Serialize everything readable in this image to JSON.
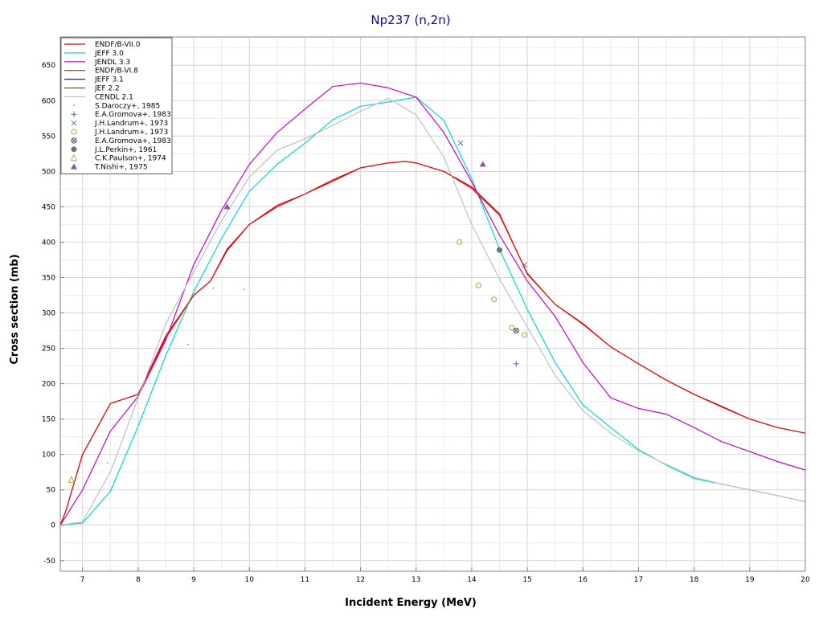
{
  "chart_data": {
    "type": "line",
    "title": "Np237 (n,2n)",
    "xlabel": "Incident Energy (MeV)",
    "ylabel": "Cross section (mb)",
    "xlim": [
      6.6,
      20
    ],
    "ylim": [
      -65,
      690
    ],
    "x_ticks": [
      7,
      8,
      9,
      10,
      11,
      12,
      13,
      14,
      15,
      16,
      17,
      18,
      19,
      20
    ],
    "y_ticks": [
      -50,
      0,
      50,
      100,
      150,
      200,
      250,
      300,
      350,
      400,
      450,
      500,
      550,
      600,
      650
    ],
    "grid": true,
    "legend_position": "top-left",
    "series": [
      {
        "name": "ENDF/B-VII.0",
        "kind": "line",
        "color": "#dd0000",
        "points": [
          [
            6.6,
            0
          ],
          [
            6.7,
            20
          ],
          [
            7.0,
            100
          ],
          [
            7.5,
            172
          ],
          [
            8.0,
            185
          ],
          [
            8.5,
            265
          ],
          [
            9.0,
            325
          ],
          [
            9.3,
            345
          ],
          [
            9.6,
            390
          ],
          [
            10.0,
            425
          ],
          [
            10.5,
            450
          ],
          [
            11.0,
            468
          ],
          [
            11.5,
            488
          ],
          [
            12.0,
            505
          ],
          [
            12.5,
            512
          ],
          [
            12.8,
            514
          ],
          [
            13.0,
            512
          ],
          [
            13.5,
            500
          ],
          [
            14.0,
            478
          ],
          [
            14.5,
            440
          ],
          [
            15.0,
            355
          ],
          [
            15.5,
            312
          ],
          [
            16.0,
            285
          ],
          [
            16.5,
            252
          ],
          [
            17.0,
            228
          ],
          [
            17.5,
            205
          ],
          [
            18.0,
            185
          ],
          [
            18.5,
            168
          ],
          [
            19.0,
            150
          ],
          [
            19.5,
            138
          ],
          [
            20.0,
            130
          ]
        ]
      },
      {
        "name": "JEFF 3.0",
        "kind": "line",
        "color": "#00d8d8",
        "points": [
          [
            6.6,
            0
          ],
          [
            7.0,
            3
          ],
          [
            7.5,
            48
          ],
          [
            8.0,
            140
          ],
          [
            8.5,
            240
          ],
          [
            9.0,
            330
          ],
          [
            9.5,
            405
          ],
          [
            10.0,
            472
          ],
          [
            10.5,
            510
          ],
          [
            11.0,
            540
          ],
          [
            11.5,
            573
          ],
          [
            12.0,
            592
          ],
          [
            12.5,
            598
          ],
          [
            13.0,
            605
          ],
          [
            13.5,
            572
          ],
          [
            14.0,
            490
          ],
          [
            14.5,
            390
          ],
          [
            15.0,
            305
          ],
          [
            15.5,
            230
          ],
          [
            16.0,
            170
          ],
          [
            16.5,
            138
          ],
          [
            17.0,
            107
          ],
          [
            17.5,
            85
          ],
          [
            18.0,
            66
          ],
          [
            18.5,
            58
          ],
          [
            19.0,
            50
          ],
          [
            19.5,
            42
          ],
          [
            20.0,
            33
          ]
        ]
      },
      {
        "name": "JENDL 3.3",
        "kind": "line",
        "color": "#cc00cc",
        "points": [
          [
            6.6,
            0
          ],
          [
            7.0,
            50
          ],
          [
            7.5,
            133
          ],
          [
            8.0,
            182
          ],
          [
            8.5,
            262
          ],
          [
            9.0,
            368
          ],
          [
            9.5,
            445
          ],
          [
            10.0,
            510
          ],
          [
            10.5,
            555
          ],
          [
            11.0,
            588
          ],
          [
            11.5,
            620
          ],
          [
            12.0,
            625
          ],
          [
            12.5,
            618
          ],
          [
            13.0,
            605
          ],
          [
            13.5,
            555
          ],
          [
            14.0,
            485
          ],
          [
            14.5,
            410
          ],
          [
            15.0,
            345
          ],
          [
            15.5,
            295
          ],
          [
            16.0,
            230
          ],
          [
            16.5,
            180
          ],
          [
            17.0,
            165
          ],
          [
            17.5,
            157
          ],
          [
            18.0,
            138
          ],
          [
            18.5,
            118
          ],
          [
            19.0,
            104
          ],
          [
            19.5,
            90
          ],
          [
            20.0,
            78
          ]
        ]
      },
      {
        "name": "ENDF/B-VI.8",
        "kind": "line",
        "color": "#e01010",
        "points": [
          [
            6.6,
            0
          ],
          [
            6.7,
            20
          ],
          [
            7.0,
            100
          ],
          [
            7.5,
            172
          ],
          [
            8.0,
            185
          ],
          [
            8.5,
            268
          ],
          [
            9.0,
            325
          ],
          [
            9.3,
            345
          ],
          [
            9.6,
            388
          ],
          [
            10.0,
            425
          ],
          [
            10.5,
            452
          ],
          [
            11.0,
            468
          ],
          [
            11.5,
            486
          ],
          [
            12.0,
            505
          ],
          [
            12.5,
            512
          ],
          [
            12.8,
            514
          ],
          [
            13.0,
            512
          ],
          [
            13.5,
            500
          ],
          [
            14.0,
            476
          ],
          [
            14.5,
            438
          ],
          [
            15.0,
            356
          ],
          [
            15.5,
            312
          ],
          [
            16.0,
            284
          ],
          [
            16.5,
            252
          ],
          [
            17.0,
            228
          ],
          [
            17.5,
            205
          ],
          [
            18.0,
            185
          ],
          [
            18.5,
            167
          ],
          [
            19.0,
            150
          ],
          [
            19.5,
            138
          ],
          [
            20.0,
            130
          ]
        ]
      },
      {
        "name": "JEFF 3.1",
        "kind": "line",
        "color": "#1a2aa0",
        "points": []
      },
      {
        "name": "JEF 2.2",
        "kind": "line",
        "color": "#555555",
        "points": []
      },
      {
        "name": "CENDL 2.1",
        "kind": "line",
        "color": "#c0c0c0",
        "points": [
          [
            6.6,
            0
          ],
          [
            7.0,
            5
          ],
          [
            7.5,
            75
          ],
          [
            8.0,
            180
          ],
          [
            8.5,
            285
          ],
          [
            9.0,
            358
          ],
          [
            9.5,
            430
          ],
          [
            10.0,
            492
          ],
          [
            10.5,
            530
          ],
          [
            11.0,
            546
          ],
          [
            11.5,
            565
          ],
          [
            12.0,
            585
          ],
          [
            12.5,
            603
          ],
          [
            13.0,
            580
          ],
          [
            13.5,
            520
          ],
          [
            14.0,
            425
          ],
          [
            14.5,
            348
          ],
          [
            15.0,
            280
          ],
          [
            15.5,
            212
          ],
          [
            16.0,
            162
          ],
          [
            16.5,
            130
          ],
          [
            17.0,
            105
          ],
          [
            17.5,
            86
          ],
          [
            18.0,
            68
          ],
          [
            18.5,
            58
          ],
          [
            19.0,
            50
          ],
          [
            19.5,
            42
          ],
          [
            20.0,
            33
          ]
        ]
      },
      {
        "name": "S.Daroczy+, 1985",
        "kind": "marker",
        "marker": "dot",
        "color": "#8888cc",
        "points": [
          [
            8.9,
            255
          ],
          [
            9.35,
            335
          ],
          [
            9.9,
            333
          ],
          [
            7.45,
            88
          ]
        ]
      },
      {
        "name": "E.A.Gromova+, 1983",
        "kind": "marker",
        "marker": "plus",
        "color": "#4466cc",
        "points": [
          [
            14.8,
            228
          ]
        ]
      },
      {
        "name": "J.H.Landrum+, 1973",
        "kind": "marker",
        "marker": "x",
        "color": "#6677aa",
        "points": [
          [
            13.8,
            540
          ],
          [
            14.95,
            368
          ]
        ]
      },
      {
        "name": "J.H.Landrum+, 1973",
        "kind": "marker",
        "marker": "open-circle",
        "color": "#99aa44",
        "points": [
          [
            13.78,
            400
          ],
          [
            14.12,
            339
          ],
          [
            14.4,
            319
          ],
          [
            14.72,
            279
          ],
          [
            14.95,
            269
          ]
        ]
      },
      {
        "name": "E.A.Gromova+, 1983",
        "kind": "marker",
        "marker": "circle-x",
        "color": "#555566",
        "points": [
          [
            14.8,
            275
          ]
        ]
      },
      {
        "name": "J.L.Perkin+, 1961",
        "kind": "marker",
        "marker": "filled-circle",
        "color": "#667777",
        "points": [
          [
            14.5,
            389
          ]
        ]
      },
      {
        "name": "C.K.Paulson+, 1974",
        "kind": "marker",
        "marker": "open-triangle",
        "color": "#aaaa44",
        "points": [
          [
            6.8,
            64
          ]
        ]
      },
      {
        "name": "T.Nishi+, 1975",
        "kind": "marker",
        "marker": "filled-triangle",
        "color": "#8855aa",
        "points": [
          [
            9.6,
            450
          ],
          [
            14.2,
            510
          ]
        ]
      }
    ]
  }
}
